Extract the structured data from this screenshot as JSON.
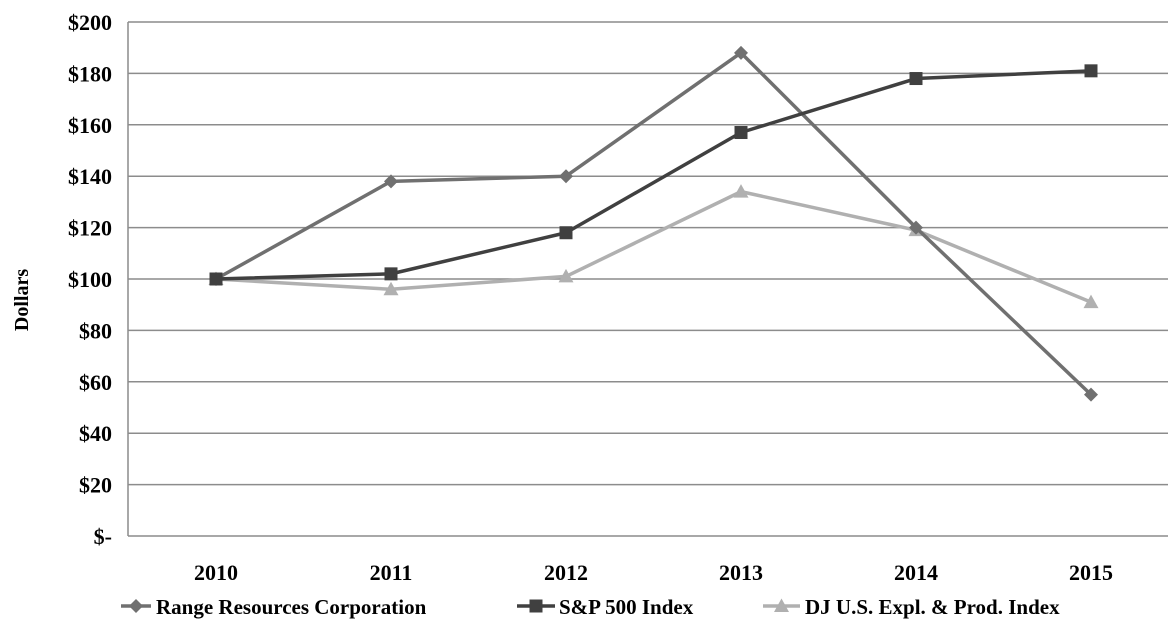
{
  "chart_data": {
    "type": "line",
    "title": "",
    "xlabel": "",
    "ylabel": "Dollars",
    "x": [
      "2010",
      "2011",
      "2012",
      "2013",
      "2014",
      "2015"
    ],
    "ylim": [
      0,
      200
    ],
    "yticks": [
      0,
      20,
      40,
      60,
      80,
      100,
      120,
      140,
      160,
      180,
      200
    ],
    "ytick_labels": [
      "$-",
      "$20",
      "$40",
      "$60",
      "$80",
      "$100",
      "$120",
      "$140",
      "$160",
      "$180",
      "$200"
    ],
    "grid": true,
    "legend_position": "bottom",
    "series": [
      {
        "name": "Range Resources Corporation",
        "marker": "diamond",
        "color": "#707070",
        "values": [
          100,
          138,
          140,
          188,
          120,
          55
        ]
      },
      {
        "name": "S&P 500 Index",
        "marker": "square",
        "color": "#404040",
        "values": [
          100,
          102,
          118,
          157,
          178,
          181
        ]
      },
      {
        "name": "DJ U.S. Expl. & Prod. Index",
        "marker": "triangle",
        "color": "#b0b0b0",
        "values": [
          100,
          96,
          101,
          134,
          119,
          91
        ]
      }
    ]
  }
}
